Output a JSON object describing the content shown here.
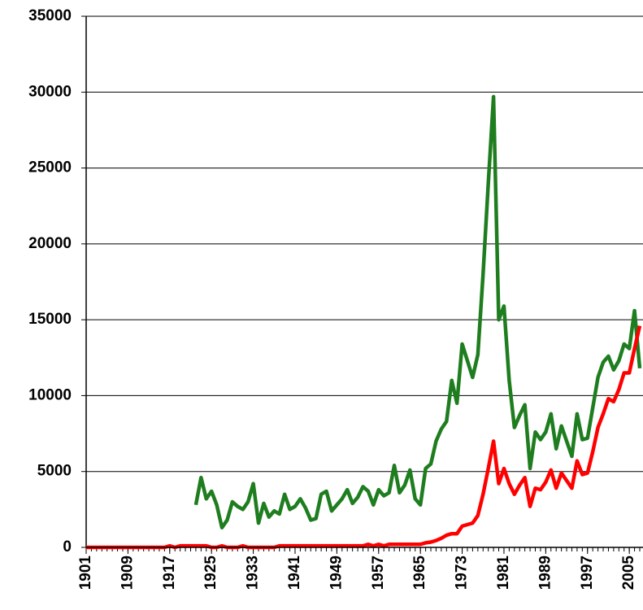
{
  "chart_data": {
    "type": "line",
    "x": [
      1901,
      1902,
      1903,
      1904,
      1905,
      1906,
      1907,
      1908,
      1909,
      1910,
      1911,
      1912,
      1913,
      1914,
      1915,
      1916,
      1917,
      1918,
      1919,
      1920,
      1921,
      1922,
      1923,
      1924,
      1925,
      1926,
      1927,
      1928,
      1929,
      1930,
      1931,
      1932,
      1933,
      1934,
      1935,
      1936,
      1937,
      1938,
      1939,
      1940,
      1941,
      1942,
      1943,
      1944,
      1945,
      1946,
      1947,
      1948,
      1949,
      1950,
      1951,
      1952,
      1953,
      1954,
      1955,
      1956,
      1957,
      1958,
      1959,
      1960,
      1961,
      1962,
      1963,
      1964,
      1965,
      1966,
      1967,
      1968,
      1969,
      1970,
      1971,
      1972,
      1973,
      1974,
      1975,
      1976,
      1977,
      1978,
      1979,
      1980,
      1981,
      1982,
      1983,
      1984,
      1985,
      1986,
      1987,
      1988,
      1989,
      1990,
      1991,
      1992,
      1993,
      1994,
      1995,
      1996,
      1997,
      1998,
      1999,
      2000,
      2001,
      2002,
      2003,
      2004,
      2005,
      2006,
      2007
    ],
    "series": [
      {
        "color": "#1e7d1e",
        "values": [
          null,
          null,
          null,
          null,
          null,
          null,
          null,
          null,
          null,
          null,
          null,
          null,
          null,
          null,
          null,
          null,
          null,
          null,
          null,
          null,
          null,
          2800,
          4600,
          3200,
          3700,
          2800,
          1300,
          1800,
          3000,
          2700,
          2500,
          3000,
          4200,
          1600,
          2900,
          2000,
          2400,
          2200,
          3500,
          2500,
          2700,
          3200,
          2600,
          1800,
          1900,
          3500,
          3700,
          2400,
          2800,
          3200,
          3800,
          2900,
          3300,
          4000,
          3700,
          2800,
          3800,
          3400,
          3600,
          5400,
          3600,
          4100,
          5100,
          3200,
          2800,
          5200,
          5500,
          7000,
          7800,
          8300,
          11000,
          9500,
          13400,
          12300,
          11200,
          12700,
          18000,
          24000,
          29700,
          15000,
          15900,
          11000,
          7900,
          8700,
          9400,
          5200,
          7600,
          7100,
          7600,
          8800,
          6500,
          8000,
          7000,
          6000,
          8800,
          7100,
          7200,
          9200,
          11200,
          12200,
          12600,
          11700,
          12300,
          13400,
          13100,
          15600,
          11800
        ]
      },
      {
        "color": "#ff0000",
        "values": [
          0,
          0,
          0,
          0,
          0,
          0,
          0,
          0,
          0,
          0,
          0,
          0,
          0,
          0,
          0,
          0,
          100,
          0,
          100,
          100,
          100,
          100,
          100,
          100,
          0,
          0,
          100,
          0,
          0,
          0,
          100,
          0,
          0,
          0,
          0,
          0,
          0,
          100,
          100,
          100,
          100,
          100,
          100,
          100,
          100,
          100,
          100,
          100,
          100,
          100,
          100,
          100,
          100,
          100,
          200,
          100,
          200,
          100,
          200,
          200,
          200,
          200,
          200,
          200,
          200,
          300,
          350,
          450,
          600,
          800,
          900,
          900,
          1400,
          1500,
          1600,
          2100,
          3500,
          5200,
          7000,
          4200,
          5200,
          4200,
          3500,
          4100,
          4600,
          2700,
          3900,
          3800,
          4300,
          5100,
          3900,
          4900,
          4400,
          3900,
          5700,
          4800,
          4900,
          6300,
          7900,
          8800,
          9800,
          9600,
          10400,
          11500,
          11500,
          13100,
          14600
        ]
      }
    ],
    "xlim": [
      1901,
      2007
    ],
    "xticks": [
      1901,
      1909,
      1917,
      1925,
      1933,
      1941,
      1949,
      1957,
      1965,
      1973,
      1981,
      1989,
      1997,
      2005
    ],
    "ylim": [
      0,
      35000
    ],
    "yticks": [
      0,
      5000,
      10000,
      15000,
      20000,
      25000,
      30000,
      35000
    ],
    "grid": true
  }
}
